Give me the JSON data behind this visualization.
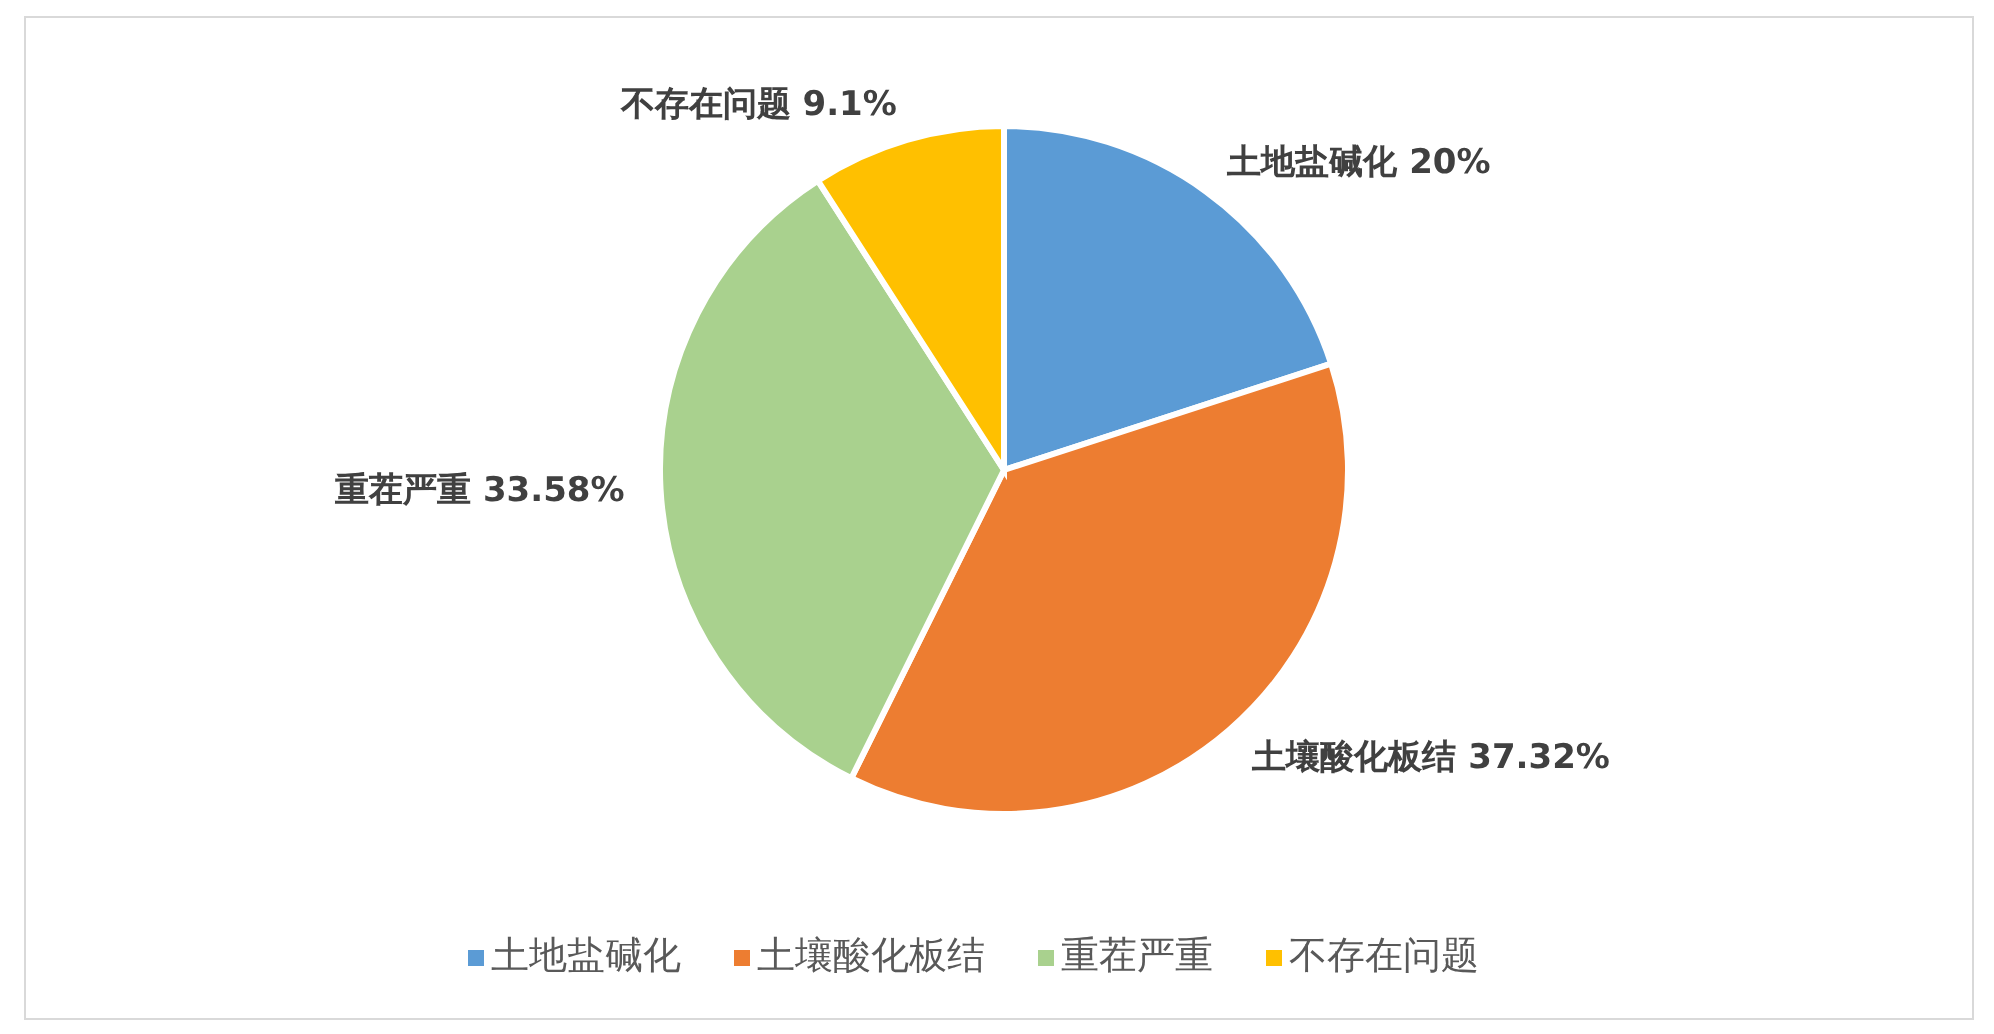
{
  "chart_data": {
    "type": "pie",
    "categories": [
      "土地盐碱化",
      "土壤酸化板结",
      "重茬严重",
      "不存在问题"
    ],
    "values": [
      20,
      37.32,
      33.58,
      9.1
    ],
    "value_labels": [
      "20%",
      "37.32%",
      "33.58%",
      "9.1%"
    ],
    "colors": [
      "#5b9bd5",
      "#ed7d31",
      "#a9d18e",
      "#ffc000"
    ],
    "legend": "bottom"
  }
}
